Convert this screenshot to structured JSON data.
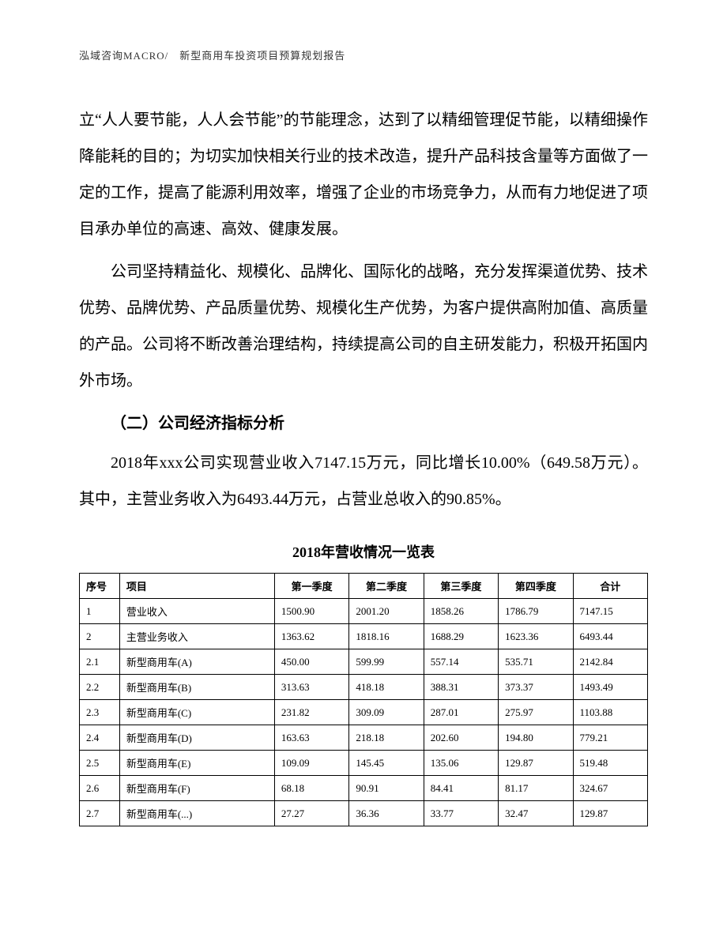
{
  "header": {
    "text": "泓域咨询MACRO/　新型商用车投资项目预算规划报告"
  },
  "paragraphs": {
    "p1": "立“人人要节能，人人会节能”的节能理念，达到了以精细管理促节能，以精细操作降能耗的目的；为切实加快相关行业的技术改造，提升产品科技含量等方面做了一定的工作，提高了能源利用效率，增强了企业的市场竞争力，从而有力地促进了项目承办单位的高速、高效、健康发展。",
    "p2": "公司坚持精益化、规模化、品牌化、国际化的战略，充分发挥渠道优势、技术优势、品牌优势、产品质量优势、规模化生产优势，为客户提供高附加值、高质量的产品。公司将不断改善治理结构，持续提高公司的自主研发能力，积极开拓国内外市场。",
    "section_heading": "（二）公司经济指标分析",
    "p3": "2018年xxx公司实现营业收入7147.15万元，同比增长10.00%（649.58万元）。其中，主营业务收入为6493.44万元，占营业总收入的90.85%。"
  },
  "table": {
    "title": "2018年营收情况一览表",
    "columns": [
      "序号",
      "项目",
      "第一季度",
      "第二季度",
      "第三季度",
      "第四季度",
      "合计"
    ],
    "rows": [
      [
        "1",
        "营业收入",
        "1500.90",
        "2001.20",
        "1858.26",
        "1786.79",
        "7147.15"
      ],
      [
        "2",
        "主营业务收入",
        "1363.62",
        "1818.16",
        "1688.29",
        "1623.36",
        "6493.44"
      ],
      [
        "2.1",
        "新型商用车(A)",
        "450.00",
        "599.99",
        "557.14",
        "535.71",
        "2142.84"
      ],
      [
        "2.2",
        "新型商用车(B)",
        "313.63",
        "418.18",
        "388.31",
        "373.37",
        "1493.49"
      ],
      [
        "2.3",
        "新型商用车(C)",
        "231.82",
        "309.09",
        "287.01",
        "275.97",
        "1103.88"
      ],
      [
        "2.4",
        "新型商用车(D)",
        "163.63",
        "218.18",
        "202.60",
        "194.80",
        "779.21"
      ],
      [
        "2.5",
        "新型商用车(E)",
        "109.09",
        "145.45",
        "135.06",
        "129.87",
        "519.48"
      ],
      [
        "2.6",
        "新型商用车(F)",
        "68.18",
        "90.91",
        "84.41",
        "81.17",
        "324.67"
      ],
      [
        "2.7",
        "新型商用车(...)",
        "27.27",
        "36.36",
        "33.77",
        "32.47",
        "129.87"
      ]
    ]
  }
}
